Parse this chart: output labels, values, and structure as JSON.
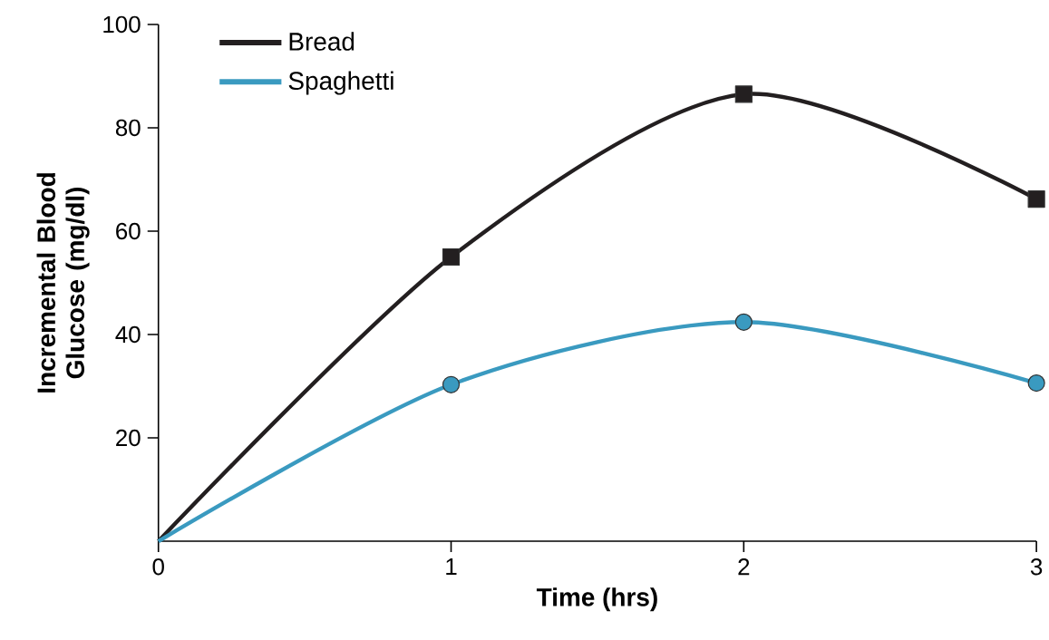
{
  "chart_data": {
    "type": "line",
    "xlabel": "Time (hrs)",
    "ylabel": "Incremental Blood Glucose (mg/dl)",
    "x": [
      0,
      1,
      2,
      3
    ],
    "series": [
      {
        "name": "Bread",
        "color": "#231f20",
        "marker": "square",
        "values": [
          0,
          55,
          86.5,
          66.2
        ]
      },
      {
        "name": "Spaghetti",
        "color": "#3a9ac0",
        "marker": "circle",
        "values": [
          0,
          30.3,
          42.4,
          30.6
        ]
      }
    ],
    "xlim": [
      0,
      3
    ],
    "ylim": [
      0,
      100
    ],
    "xticks": [
      0,
      1,
      2,
      3
    ],
    "yticks": [
      20,
      40,
      60,
      80,
      100
    ],
    "legend": "top left",
    "grid": false,
    "line_style": "solid"
  }
}
